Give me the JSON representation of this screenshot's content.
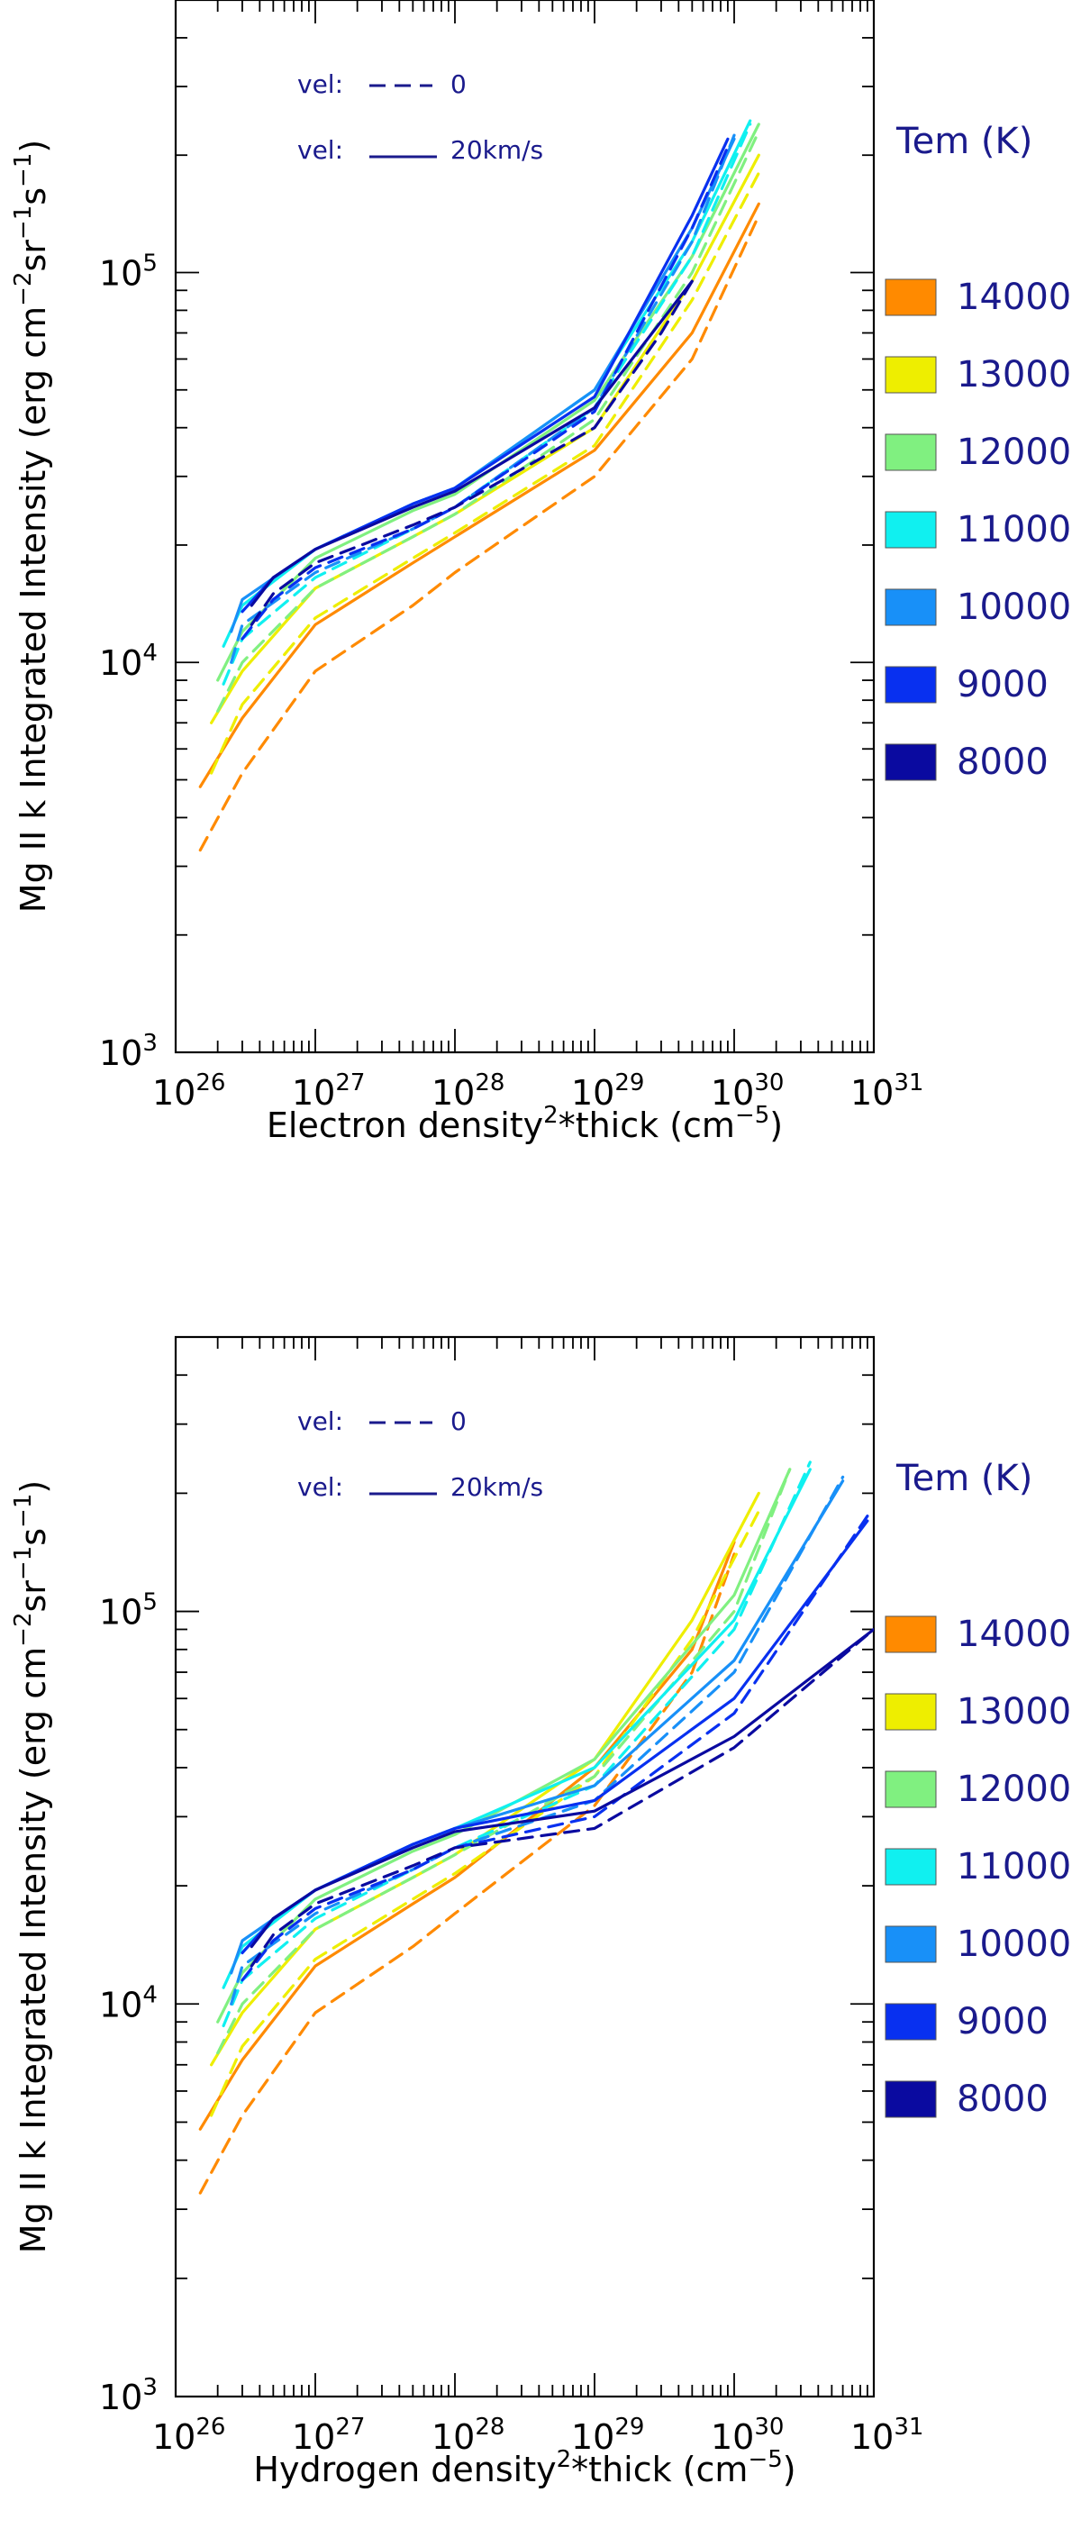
{
  "legend": {
    "title": "Tem (K)",
    "vel_prefix": "vel:",
    "vel_static_value": "0",
    "vel_moving_value": "20km/s"
  },
  "chart_data": [
    {
      "type": "line",
      "xscale": "log",
      "yscale": "log",
      "xlim": [
        1e+26,
        1e+31
      ],
      "ylim": [
        1000,
        500000
      ],
      "xlabel_main": "Electron density",
      "xlabel_tail": "*thick (cm",
      "ylabel_main": "Mg II k Integrated Intensity (erg cm",
      "ylabel_mid": "sr",
      "ylabel_end": "s",
      "x_tick_labels": [
        "10",
        "10",
        "10",
        "10",
        "10",
        "10"
      ],
      "x_tick_exponents": [
        "26",
        "27",
        "28",
        "29",
        "30",
        "31"
      ],
      "y_tick_labels": [
        "10",
        "10",
        "10"
      ],
      "y_tick_exponents": [
        "3",
        "4",
        "5"
      ],
      "line_styles": {
        "dashed": "vel 0",
        "solid": "vel 20km/s"
      },
      "series": [
        {
          "name": "14000",
          "color": "#ff8a00",
          "dashed": {
            "x": [
              1.5e+26,
              3e+26,
              1e+27,
              5e+27,
              1e+28,
              1e+29,
              5e+29,
              1.5e+30
            ],
            "y": [
              3300,
              5200,
              9500,
              14000,
              17000,
              30000,
              60000,
              140000
            ]
          },
          "solid": {
            "x": [
              1.5e+26,
              3e+26,
              1e+27,
              5e+27,
              1e+28,
              1e+29,
              5e+29,
              1.5e+30
            ],
            "y": [
              4800,
              7200,
              12500,
              18000,
              21000,
              35000,
              70000,
              150000
            ]
          }
        },
        {
          "name": "13000",
          "color": "#eeee00",
          "dashed": {
            "x": [
              1.8e+26,
              3e+26,
              1e+27,
              5e+27,
              1e+28,
              1e+29,
              5e+29,
              1.5e+30
            ],
            "y": [
              5200,
              7800,
              13000,
              18500,
              21500,
              36000,
              85000,
              180000
            ]
          },
          "solid": {
            "x": [
              1.8e+26,
              3e+26,
              1e+27,
              5e+27,
              1e+28,
              1e+29,
              5e+29,
              1.5e+30
            ],
            "y": [
              7000,
              9500,
              15500,
              21000,
              24000,
              40000,
              95000,
              200000
            ]
          }
        },
        {
          "name": "12000",
          "color": "#80f080",
          "dashed": {
            "x": [
              2e+26,
              3e+26,
              1e+27,
              5e+27,
              1e+28,
              1e+29,
              5e+29,
              1.5e+30
            ],
            "y": [
              7500,
              10000,
              15500,
              21000,
              24000,
              42000,
              100000,
              230000
            ]
          },
          "solid": {
            "x": [
              2e+26,
              3e+26,
              1e+27,
              5e+27,
              1e+28,
              1e+29,
              5e+29,
              1.5e+30
            ],
            "y": [
              9000,
              12000,
              18500,
              24500,
              27000,
              47000,
              110000,
              240000
            ]
          }
        },
        {
          "name": "11000",
          "color": "#10f0f0",
          "dashed": {
            "x": [
              2.2e+26,
              3e+26,
              1e+27,
              5e+27,
              1e+28,
              1e+29,
              5e+29,
              1.3e+30
            ],
            "y": [
              8800,
              11500,
              16500,
              22000,
              25000,
              45000,
              110000,
              240000
            ]
          },
          "solid": {
            "x": [
              2.2e+26,
              3e+26,
              1e+27,
              5e+27,
              1e+28,
              1e+29,
              5e+29,
              1.3e+30
            ],
            "y": [
              11000,
              14000,
              19500,
              25500,
              28000,
              50000,
              120000,
              245000
            ]
          }
        },
        {
          "name": "10000",
          "color": "#1890f8",
          "dashed": {
            "x": [
              2.5e+26,
              3e+26,
              1e+27,
              5e+27,
              1e+28,
              1e+29,
              5e+29,
              1e+30
            ],
            "y": [
              10000,
              12500,
              17000,
              22000,
              25000,
              45000,
              120000,
              225000
            ]
          },
          "solid": {
            "x": [
              2.5e+26,
              3e+26,
              1e+27,
              5e+27,
              1e+28,
              1e+29,
              5e+29,
              1e+30
            ],
            "y": [
              12000,
              14500,
              19500,
              25500,
              28000,
              50000,
              130000,
              220000
            ]
          }
        },
        {
          "name": "9000",
          "color": "#0830f0",
          "dashed": {
            "x": [
              3e+26,
              5e+26,
              1e+27,
              5e+27,
              1e+28,
              1e+29,
              5e+29,
              9e+29
            ],
            "y": [
              11500,
              14500,
              17500,
              22000,
              25000,
              44000,
              130000,
              210000
            ]
          },
          "solid": {
            "x": [
              3e+26,
              5e+26,
              1e+27,
              5e+27,
              1e+28,
              1e+29,
              5e+29,
              9e+29
            ],
            "y": [
              13500,
              16500,
              19500,
              25500,
              28000,
              48000,
              140000,
              220000
            ]
          }
        },
        {
          "name": "8000",
          "color": "#0a0aa0",
          "dashed": {
            "x": [
              3.5e+26,
              5e+26,
              1e+27,
              5e+27,
              1e+28,
              1e+29,
              3e+29,
              5e+29
            ],
            "y": [
              12500,
              15000,
              18000,
              22500,
              25000,
              40000,
              70000,
              95000
            ]
          },
          "solid": {
            "x": [
              3.5e+26,
              5e+26,
              1e+27,
              5e+27,
              1e+28,
              1e+29,
              3e+29,
              5e+29
            ],
            "y": [
              14000,
              16500,
              19500,
              25000,
              27500,
              45000,
              75000,
              95000
            ]
          }
        }
      ]
    },
    {
      "type": "line",
      "xscale": "log",
      "yscale": "log",
      "xlim": [
        1e+26,
        1e+31
      ],
      "ylim": [
        1000,
        500000
      ],
      "xlabel_main": "Hydrogen density",
      "xlabel_tail": "*thick (cm",
      "ylabel_main": "Mg II k Integrated Intensity (erg cm",
      "ylabel_mid": "sr",
      "ylabel_end": "s",
      "x_tick_labels": [
        "10",
        "10",
        "10",
        "10",
        "10",
        "10"
      ],
      "x_tick_exponents": [
        "26",
        "27",
        "28",
        "29",
        "30",
        "31"
      ],
      "y_tick_labels": [
        "10",
        "10",
        "10"
      ],
      "y_tick_exponents": [
        "3",
        "4",
        "5"
      ],
      "line_styles": {
        "dashed": "vel 0",
        "solid": "vel 20km/s"
      },
      "series": [
        {
          "name": "14000",
          "color": "#ff8a00",
          "dashed": {
            "x": [
              1.5e+26,
              3e+26,
              1e+27,
              5e+27,
              1e+28,
              1e+29,
              5e+29,
              1e+30
            ],
            "y": [
              3300,
              5200,
              9500,
              14000,
              17000,
              32000,
              70000,
              140000
            ]
          },
          "solid": {
            "x": [
              1.5e+26,
              3e+26,
              1e+27,
              5e+27,
              1e+28,
              1e+29,
              5e+29,
              1e+30
            ],
            "y": [
              4800,
              7200,
              12500,
              18000,
              21000,
              40000,
              80000,
              150000
            ]
          }
        },
        {
          "name": "13000",
          "color": "#eeee00",
          "dashed": {
            "x": [
              1.8e+26,
              3e+26,
              1e+27,
              5e+27,
              1e+28,
              1e+29,
              5e+29,
              1.5e+30
            ],
            "y": [
              5200,
              7800,
              13000,
              18500,
              21500,
              38000,
              85000,
              180000
            ]
          },
          "solid": {
            "x": [
              1.8e+26,
              3e+26,
              1e+27,
              5e+27,
              1e+28,
              1e+29,
              5e+29,
              1.5e+30
            ],
            "y": [
              7000,
              9500,
              15500,
              21000,
              24000,
              42000,
              95000,
              200000
            ]
          }
        },
        {
          "name": "12000",
          "color": "#80f080",
          "dashed": {
            "x": [
              2e+26,
              3e+26,
              1e+27,
              5e+27,
              1e+28,
              1e+29,
              1e+30,
              2.5e+30
            ],
            "y": [
              7500,
              10000,
              15500,
              21000,
              24000,
              38000,
              100000,
              230000
            ]
          },
          "solid": {
            "x": [
              2e+26,
              3e+26,
              1e+27,
              5e+27,
              1e+28,
              1e+29,
              1e+30,
              2.5e+30
            ],
            "y": [
              9000,
              12000,
              18500,
              24500,
              27000,
              42000,
              110000,
              230000
            ]
          }
        },
        {
          "name": "11000",
          "color": "#10f0f0",
          "dashed": {
            "x": [
              2.2e+26,
              3e+26,
              1e+27,
              5e+27,
              1e+28,
              1e+29,
              1e+30,
              3.5e+30
            ],
            "y": [
              8800,
              11500,
              16500,
              22000,
              25000,
              36000,
              90000,
              240000
            ]
          },
          "solid": {
            "x": [
              2.2e+26,
              3e+26,
              1e+27,
              5e+27,
              1e+28,
              1e+29,
              1e+30,
              3.5e+30
            ],
            "y": [
              11000,
              14000,
              19500,
              25500,
              28000,
              40000,
              95000,
              230000
            ]
          }
        },
        {
          "name": "10000",
          "color": "#1890f8",
          "dashed": {
            "x": [
              2.5e+26,
              3e+26,
              1e+27,
              5e+27,
              1e+28,
              1e+29,
              1e+30,
              6e+30
            ],
            "y": [
              10000,
              12500,
              17000,
              22000,
              25000,
              33000,
              70000,
              220000
            ]
          },
          "solid": {
            "x": [
              2.5e+26,
              3e+26,
              1e+27,
              5e+27,
              1e+28,
              1e+29,
              1e+30,
              6e+30
            ],
            "y": [
              12000,
              14500,
              19500,
              25500,
              28000,
              36000,
              75000,
              215000
            ]
          }
        },
        {
          "name": "9000",
          "color": "#0830f0",
          "dashed": {
            "x": [
              3e+26,
              5e+26,
              1e+27,
              5e+27,
              1e+28,
              1e+29,
              1e+30,
              9e+30
            ],
            "y": [
              11500,
              14500,
              17500,
              22000,
              25000,
              30000,
              55000,
              175000
            ]
          },
          "solid": {
            "x": [
              3e+26,
              5e+26,
              1e+27,
              5e+27,
              1e+28,
              1e+29,
              1e+30,
              9e+30
            ],
            "y": [
              13500,
              16500,
              19500,
              25500,
              28000,
              33000,
              60000,
              170000
            ]
          }
        },
        {
          "name": "8000",
          "color": "#0a0aa0",
          "dashed": {
            "x": [
              3.5e+26,
              5e+26,
              1e+27,
              5e+27,
              1e+28,
              1e+29,
              1e+30,
              1e+31
            ],
            "y": [
              12500,
              15000,
              18000,
              22500,
              25000,
              28000,
              45000,
              90000
            ]
          },
          "solid": {
            "x": [
              3.5e+26,
              5e+26,
              1e+27,
              5e+27,
              1e+28,
              1e+29,
              1e+30,
              1e+31
            ],
            "y": [
              14000,
              16500,
              19500,
              25000,
              27500,
              31000,
              48000,
              90000
            ]
          }
        }
      ]
    }
  ]
}
